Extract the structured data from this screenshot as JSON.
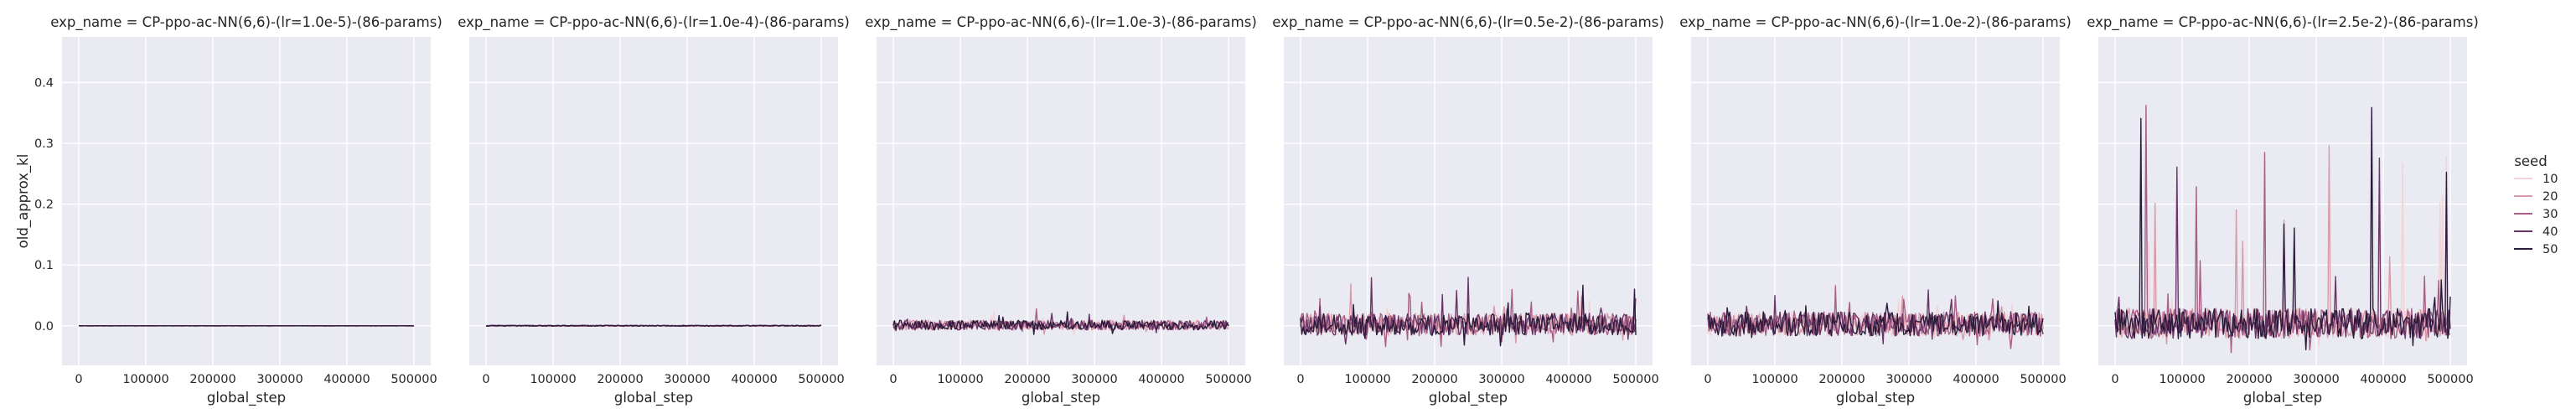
{
  "chart_data": {
    "type": "line",
    "facet_variable": "exp_name",
    "facets": [
      {
        "title": "exp_name = CP-ppo-ac-NN(6,6)-(lr=1.0e-5)-(86-params)",
        "noise": 0.0002,
        "spike": 0.0
      },
      {
        "title": "exp_name = CP-ppo-ac-NN(6,6)-(lr=1.0e-4)-(86-params)",
        "noise": 0.0008,
        "spike": 0.0
      },
      {
        "title": "exp_name = CP-ppo-ac-NN(6,6)-(lr=1.0e-3)-(86-params)",
        "noise": 0.008,
        "spike": 0.035
      },
      {
        "title": "exp_name = CP-ppo-ac-NN(6,6)-(lr=0.5e-2)-(86-params)",
        "noise": 0.018,
        "spike": 0.07
      },
      {
        "title": "exp_name = CP-ppo-ac-NN(6,6)-(lr=1.0e-2)-(86-params)",
        "noise": 0.02,
        "spike": 0.06
      },
      {
        "title": "exp_name = CP-ppo-ac-NN(6,6)-(lr=2.5e-2)-(86-params)",
        "noise": 0.025,
        "spike": 0.45
      }
    ],
    "xlabel": "global_step",
    "ylabel": "old_approx_kl",
    "x_ticks": [
      0,
      100000,
      200000,
      300000,
      400000,
      500000
    ],
    "x_range": [
      -25000,
      525000
    ],
    "y_ticks": [
      0.0,
      0.1,
      0.2,
      0.3,
      0.4
    ],
    "y_range": [
      -0.065,
      0.475
    ],
    "x_data_range": [
      0,
      500000
    ],
    "legend": {
      "title": "seed",
      "placement": "right",
      "entries": [
        {
          "label": "10",
          "color": "#f2d3d6"
        },
        {
          "label": "20",
          "color": "#d89aa8"
        },
        {
          "label": "30",
          "color": "#a85e85"
        },
        {
          "label": "40",
          "color": "#6b3566"
        },
        {
          "label": "50",
          "color": "#2b1a3a"
        }
      ]
    },
    "grid": true,
    "background": "#eaeaf2"
  }
}
